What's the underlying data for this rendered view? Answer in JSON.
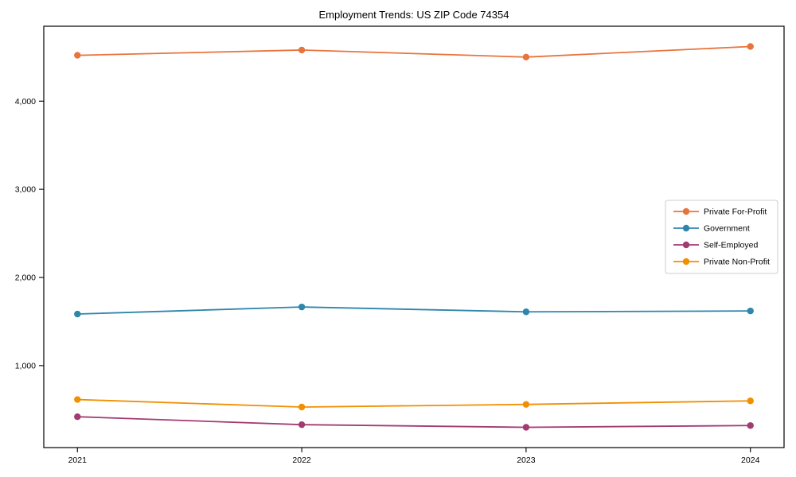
{
  "page": {
    "background": "#ffffff"
  },
  "chart_data": {
    "type": "line",
    "title": "Employment Trends: US ZIP Code 74354",
    "xlabel": "",
    "ylabel": "",
    "x": [
      2021,
      2022,
      2023,
      2024
    ],
    "x_tick_labels": [
      "2021",
      "2022",
      "2023",
      "2024"
    ],
    "series": [
      {
        "name": "Private For-Profit",
        "color": "#E8743B",
        "values": [
          4520,
          4580,
          4500,
          4620
        ]
      },
      {
        "name": "Government",
        "color": "#2E86AB",
        "values": [
          1585,
          1665,
          1610,
          1620
        ]
      },
      {
        "name": "Self-Employed",
        "color": "#A23B72",
        "values": [
          420,
          330,
          300,
          320
        ]
      },
      {
        "name": "Private Non-Profit",
        "color": "#F18F01",
        "values": [
          615,
          530,
          560,
          600
        ]
      }
    ],
    "y_ticks": [
      1000,
      2000,
      3000,
      4000
    ],
    "y_tick_labels": [
      "1,000",
      "2,000",
      "3,000",
      "4,000"
    ],
    "xlim": [
      2020.85,
      2024.15
    ],
    "ylim": [
      70,
      4850
    ],
    "grid": false,
    "legend_position": "center right",
    "marker": "circle",
    "axis_color": "#000000",
    "legend_border_color": "#cccccc",
    "legend_background": "#ffffff"
  }
}
